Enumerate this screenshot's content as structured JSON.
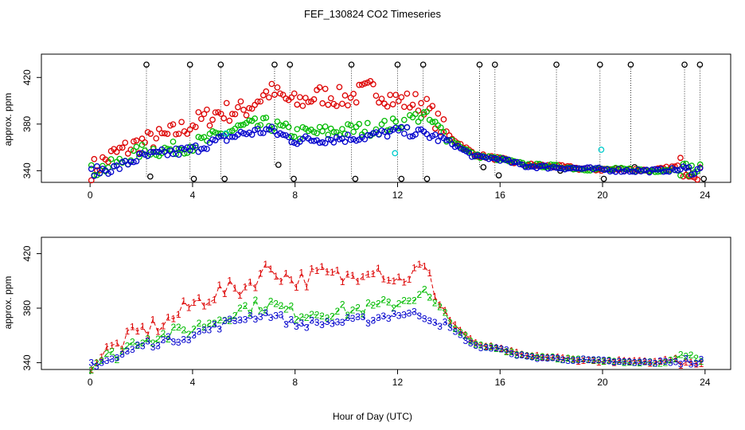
{
  "chart_data": {
    "title": "FEF_130824  CO2 Timeseries",
    "xlabel": "Hour of Day (UTC)",
    "panels": [
      {
        "type": "scatter",
        "ylabel": "approx. ppm",
        "xlim": [
          -1.9,
          25.0
        ],
        "ylim": [
          330,
          440
        ],
        "x_ticks": [
          0,
          4,
          8,
          12,
          16,
          20,
          24
        ],
        "y_ticks": [
          340,
          380,
          420
        ],
        "marker": "circle",
        "series_colors": {
          "black": "#000000",
          "red": "#dd0000",
          "green": "#00bb00",
          "blue": "#0000cc",
          "cyan": "#00cccc"
        },
        "spikes": {
          "x": [
            2.2,
            3.9,
            5.1,
            7.2,
            7.8,
            10.2,
            12.0,
            13.0,
            15.2,
            15.8,
            18.2,
            19.9,
            21.1,
            23.2,
            23.8
          ],
          "low": [
            335,
            333,
            333,
            345,
            333,
            333,
            333,
            333,
            343,
            336,
            340,
            333,
            343,
            340,
            333
          ],
          "high": [
            431,
            431,
            431,
            431,
            431,
            431,
            431,
            431,
            431,
            431,
            431,
            431,
            431,
            431,
            431
          ]
        },
        "hourly": {
          "x": [
            0,
            1,
            2,
            3,
            4,
            5,
            6,
            7,
            8,
            9,
            10,
            11,
            12,
            13,
            14,
            15,
            16,
            17,
            18,
            19,
            20,
            21,
            22,
            23,
            24
          ],
          "blue": [
            339,
            342,
            352,
            355,
            358,
            366,
            372,
            375,
            366,
            367,
            368,
            370,
            374,
            372,
            365,
            352,
            350,
            344,
            343,
            342,
            341,
            340,
            340,
            341,
            340
          ],
          "green": [
            339,
            345,
            357,
            358,
            362,
            370,
            378,
            380,
            372,
            373,
            375,
            376,
            380,
            388,
            368,
            353,
            350,
            345,
            344,
            342,
            341,
            341,
            340,
            342,
            340
          ],
          "red": [
            340,
            355,
            364,
            370,
            380,
            390,
            392,
            408,
            398,
            405,
            402,
            410,
            400,
            398,
            370,
            354,
            350,
            345,
            344,
            342,
            341,
            341,
            340,
            344,
            340
          ]
        }
      },
      {
        "type": "line",
        "ylabel": "approx. ppm",
        "xlim": [
          -1.9,
          25.0
        ],
        "ylim": [
          335,
          432
        ],
        "x_ticks": [
          0,
          4,
          8,
          12,
          16,
          20,
          24
        ],
        "y_ticks": [
          340,
          380,
          420
        ],
        "series": [
          {
            "name": "1",
            "color": "#dd0000",
            "values": [
              340,
              352,
              363,
              370,
              383,
              392,
              395,
              410,
              400,
              405,
              402,
              412,
              400,
              410,
              372,
              354,
              350,
              345,
              344,
              342,
              341,
              341,
              340,
              344,
              340
            ]
          },
          {
            "name": "2",
            "color": "#00bb00",
            "values": [
              339,
              346,
              358,
              360,
              365,
              372,
              380,
              383,
              376,
              377,
              378,
              380,
              384,
              392,
              370,
              353,
              350,
              345,
              344,
              342,
              341,
              341,
              340,
              342,
              340
            ]
          },
          {
            "name": "3",
            "color": "#0000cc",
            "values": [
              339,
              343,
              353,
              356,
              360,
              367,
              373,
              376,
              368,
              369,
              370,
              372,
              376,
              375,
              366,
              352,
              350,
              344,
              343,
              342,
              341,
              340,
              340,
              341,
              340
            ]
          }
        ],
        "x": [
          0,
          1,
          2,
          3,
          4,
          5,
          6,
          7,
          8,
          9,
          10,
          11,
          12,
          13,
          14,
          15,
          16,
          17,
          18,
          19,
          20,
          21,
          22,
          23,
          24
        ]
      }
    ]
  }
}
